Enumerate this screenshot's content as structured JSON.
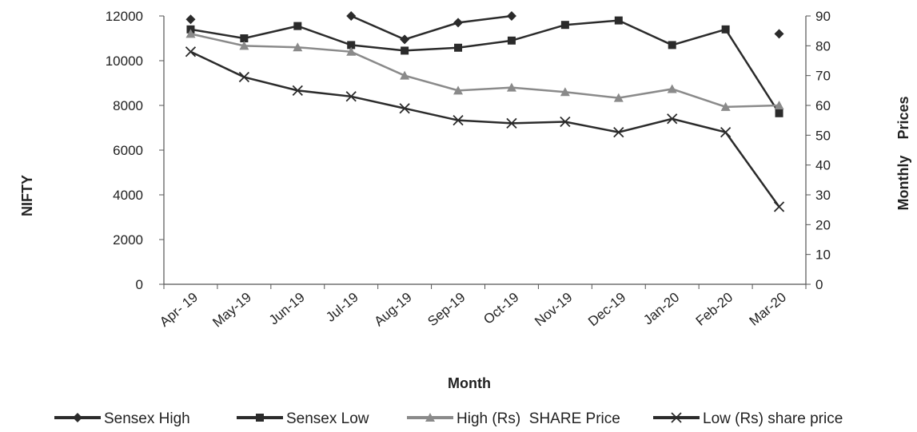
{
  "chart_data": {
    "type": "line",
    "title": "",
    "xlabel": "Month",
    "ylabel_left": "NIFTY",
    "ylabel_right": "Monthly    Prices",
    "categories": [
      "Apr- 19",
      "May-19",
      "Jun-19",
      "Jul-19",
      "Aug-19",
      "Sep-19",
      "Oct-19",
      "Nov-19",
      "Dec-19",
      "Jan-20",
      "Feb-20",
      "Mar-20"
    ],
    "ylim_left": [
      0,
      12000
    ],
    "yticks_left": [
      "0",
      "2000",
      "4000",
      "6000",
      "8000",
      "10000",
      "12000"
    ],
    "ylim_right": [
      0,
      90
    ],
    "yticks_right": [
      "0",
      "10",
      "20",
      "30",
      "40",
      "50",
      "60",
      "70",
      "80",
      "90"
    ],
    "grid": false,
    "legend_position": "bottom",
    "series": [
      {
        "name": "Sensex High",
        "axis": "left",
        "marker": "diamond",
        "color": "#2b2b2b",
        "values": [
          11850,
          null,
          null,
          12000,
          10950,
          11700,
          12000,
          null,
          null,
          null,
          null,
          11200
        ]
      },
      {
        "name": "Sensex Low",
        "axis": "left",
        "marker": "square",
        "color": "#2b2b2b",
        "values": [
          11400,
          11000,
          11550,
          10700,
          10450,
          10580,
          10900,
          11600,
          11800,
          10700,
          11400,
          7650
        ]
      },
      {
        "name": "High (Rs)  SHARE Price",
        "axis": "right",
        "marker": "triangle",
        "color": "#8a8a8a",
        "values": [
          84,
          80,
          79.5,
          78,
          70,
          65,
          66,
          64.5,
          62.5,
          65.5,
          59.5,
          60
        ]
      },
      {
        "name": "Low (Rs) share price",
        "axis": "right",
        "marker": "x",
        "color": "#2b2b2b",
        "values": [
          78,
          69.5,
          65,
          63,
          59,
          55,
          54,
          54.5,
          51,
          55.5,
          51,
          26
        ]
      }
    ]
  }
}
